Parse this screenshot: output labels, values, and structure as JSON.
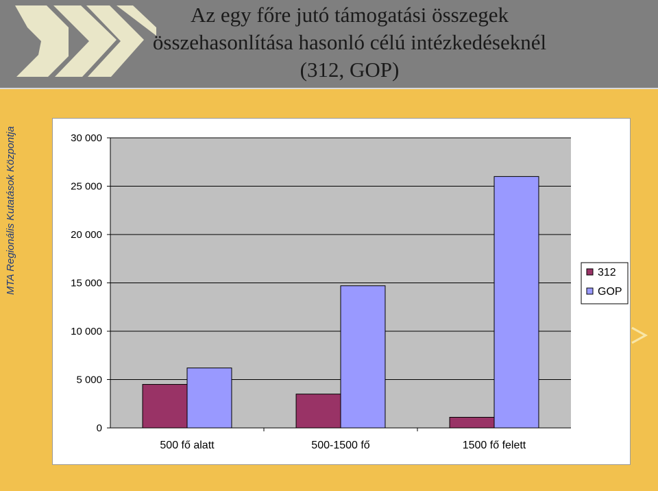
{
  "title_lines": [
    "Az egy főre jutó támogatási összegek",
    "összehasonlítása hasonló célú intézkedéseknél",
    "(312, GOP)"
  ],
  "side_label": "MTA Regionális Kutatások Központja",
  "colors": {
    "header_bg": "#7f7f7f",
    "slide_bg": "#f2c14e",
    "plot_bg": "#c0c0c0",
    "series_312": "#993366",
    "series_gop": "#9999ff",
    "side_text": "#1f3a7a"
  },
  "chart_data": {
    "type": "bar",
    "categories": [
      "500 fő alatt",
      "500-1500 fő",
      "1500 fő felett"
    ],
    "series": [
      {
        "name": "312",
        "values": [
          4500,
          3500,
          1100
        ]
      },
      {
        "name": "GOP",
        "values": [
          6200,
          14700,
          26000
        ]
      }
    ],
    "ylim": [
      0,
      30000
    ],
    "yticks": [
      0,
      5000,
      10000,
      15000,
      20000,
      25000,
      30000
    ],
    "ytick_labels": [
      "0",
      "5 000",
      "10 000",
      "15 000",
      "20 000",
      "25 000",
      "30 000"
    ],
    "grid": true,
    "legend": "right",
    "title": "",
    "xlabel": "",
    "ylabel": ""
  }
}
